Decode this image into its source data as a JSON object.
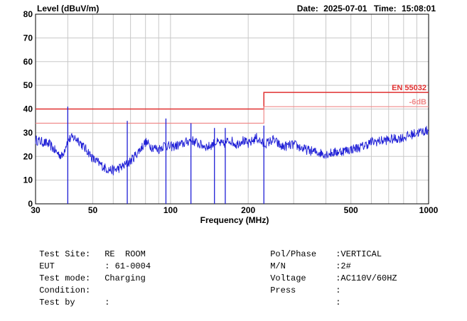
{
  "header": {
    "date_label": "Date:",
    "date_value": "2025-07-01",
    "time_label": "Time:",
    "time_value": "15:08:01"
  },
  "chart_data": {
    "type": "line",
    "ylabel": "Level (dBuV/m)",
    "xlabel": "Frequency (MHz)",
    "x_scale": "log",
    "xlim": [
      30,
      1000
    ],
    "ylim": [
      0,
      80
    ],
    "grid": true,
    "x_ticks": [
      30,
      50,
      100,
      200,
      500,
      1000
    ],
    "y_ticks": [
      0,
      10,
      20,
      30,
      40,
      50,
      60,
      70,
      80
    ],
    "limits": [
      {
        "name": "EN 55032",
        "color": "#e03030",
        "segments": [
          {
            "x": [
              30,
              230
            ],
            "y": 40
          },
          {
            "x": [
              230,
              1000
            ],
            "y": 47
          }
        ]
      },
      {
        "name": "-6dB",
        "color": "#f08a8a",
        "segments": [
          {
            "x": [
              30,
              230
            ],
            "y": 34
          },
          {
            "x": [
              230,
              1000
            ],
            "y": 41
          }
        ]
      }
    ],
    "series": [
      {
        "color": "#1f1fd6",
        "x": [
          30,
          32,
          34,
          36,
          38,
          40,
          42,
          44,
          46,
          48,
          50,
          53,
          56,
          60,
          63,
          66,
          70,
          75,
          80,
          85,
          90,
          95,
          100,
          110,
          120,
          130,
          140,
          150,
          160,
          170,
          180,
          190,
          200,
          215,
          230,
          250,
          270,
          300,
          330,
          360,
          400,
          450,
          500,
          550,
          600,
          700,
          800,
          900,
          1000
        ],
        "y": [
          27,
          26,
          25,
          22,
          20,
          27,
          28,
          27,
          24,
          22,
          19,
          17,
          15,
          14,
          15,
          16,
          18,
          22,
          26,
          24,
          23,
          25,
          24,
          25,
          27,
          25,
          24,
          26,
          25,
          27,
          25,
          27,
          25,
          28,
          25,
          27,
          24,
          25,
          23,
          22,
          21,
          22,
          23,
          24,
          26,
          27,
          28,
          30,
          31
        ]
      }
    ],
    "spikes": [
      {
        "x": 40,
        "y": 41,
        "color": "#1f1fd6"
      },
      {
        "x": 68,
        "y": 35,
        "color": "#1f1fd6"
      },
      {
        "x": 96,
        "y": 36,
        "color": "#1f1fd6"
      },
      {
        "x": 120,
        "y": 34,
        "color": "#1f1fd6"
      },
      {
        "x": 148,
        "y": 32,
        "color": "#1f1fd6"
      },
      {
        "x": 163,
        "y": 32,
        "color": "#1f1fd6"
      },
      {
        "x": 230,
        "y": 33,
        "color": "#1f1fd6"
      }
    ]
  },
  "info": {
    "test_site_label": "Test Site:",
    "test_site_value": "RE  ROOM",
    "eut_label": "EUT",
    "eut_value": ": 61-0004",
    "test_mode_label": "Test mode:",
    "test_mode_value": "Charging",
    "condition_label": "Condition:",
    "condition_value": "",
    "test_by_label": "Test by",
    "test_by_value": ":",
    "pol_label": "Pol/Phase",
    "pol_value": ":VERTICAL",
    "mn_label": "M/N",
    "mn_value": ":2#",
    "voltage_label": "Voltage",
    "voltage_value": ":AC110V/60HZ",
    "press_label": "Press",
    "press_value": ":",
    "blank_label": "",
    "blank_value": ":"
  }
}
